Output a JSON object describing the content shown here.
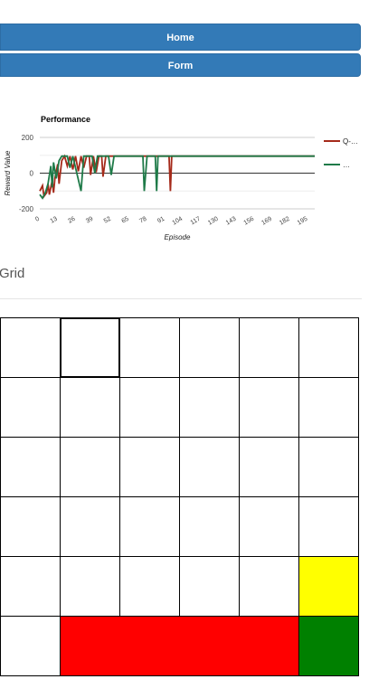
{
  "nav": {
    "home_label": "Home",
    "form_label": "Form"
  },
  "chart_data": {
    "type": "line",
    "title": "Performance",
    "xlabel": "Episode",
    "ylabel": "Reward Value",
    "ylim": [
      -200,
      200
    ],
    "yticks": [
      200,
      0,
      -200
    ],
    "xticks": [
      0,
      13,
      26,
      39,
      52,
      65,
      78,
      91,
      104,
      117,
      130,
      143,
      156,
      169,
      182,
      195
    ],
    "xlim": [
      0,
      200
    ],
    "legend_position": "right",
    "series": [
      {
        "name": "Q-…",
        "color": "#a52a1a",
        "values": [
          [
            0,
            -100
          ],
          [
            2,
            -70
          ],
          [
            3,
            -130
          ],
          [
            5,
            -110
          ],
          [
            6,
            -60
          ],
          [
            7,
            -120
          ],
          [
            9,
            -40
          ],
          [
            10,
            -110
          ],
          [
            11,
            -30
          ],
          [
            13,
            50
          ],
          [
            14,
            -60
          ],
          [
            16,
            70
          ],
          [
            18,
            95
          ],
          [
            20,
            40
          ],
          [
            22,
            95
          ],
          [
            24,
            20
          ],
          [
            26,
            95
          ],
          [
            28,
            10
          ],
          [
            30,
            95
          ],
          [
            32,
            30
          ],
          [
            34,
            95
          ],
          [
            36,
            95
          ],
          [
            37,
            -10
          ],
          [
            39,
            95
          ],
          [
            41,
            5
          ],
          [
            43,
            95
          ],
          [
            45,
            95
          ],
          [
            46,
            -20
          ],
          [
            48,
            95
          ],
          [
            50,
            95
          ],
          [
            60,
            95
          ],
          [
            70,
            95
          ],
          [
            80,
            95
          ],
          [
            90,
            95
          ],
          [
            94,
            95
          ],
          [
            95,
            -100
          ],
          [
            96,
            95
          ],
          [
            110,
            95
          ],
          [
            130,
            95
          ],
          [
            150,
            95
          ],
          [
            170,
            95
          ],
          [
            190,
            95
          ],
          [
            200,
            95
          ]
        ]
      },
      {
        "name": "…",
        "color": "#1e7a48",
        "values": [
          [
            0,
            -120
          ],
          [
            2,
            -140
          ],
          [
            4,
            -110
          ],
          [
            6,
            -60
          ],
          [
            8,
            40
          ],
          [
            9,
            -80
          ],
          [
            10,
            60
          ],
          [
            12,
            -30
          ],
          [
            14,
            70
          ],
          [
            16,
            95
          ],
          [
            20,
            95
          ],
          [
            22,
            30
          ],
          [
            24,
            95
          ],
          [
            30,
            -100
          ],
          [
            32,
            95
          ],
          [
            38,
            95
          ],
          [
            40,
            0
          ],
          [
            42,
            95
          ],
          [
            50,
            95
          ],
          [
            52,
            -10
          ],
          [
            54,
            95
          ],
          [
            60,
            95
          ],
          [
            70,
            95
          ],
          [
            75,
            95
          ],
          [
            76,
            -100
          ],
          [
            78,
            95
          ],
          [
            84,
            95
          ],
          [
            85,
            -100
          ],
          [
            86,
            95
          ],
          [
            100,
            95
          ],
          [
            120,
            95
          ],
          [
            140,
            95
          ],
          [
            160,
            95
          ],
          [
            180,
            95
          ],
          [
            200,
            95
          ]
        ]
      }
    ]
  },
  "grid": {
    "title": "Grid",
    "rows": 6,
    "cols": 6,
    "selected": [
      0,
      1
    ],
    "colors": {
      "yellow": "#ffff00",
      "red": "#ff0000",
      "green": "#008000"
    }
  }
}
